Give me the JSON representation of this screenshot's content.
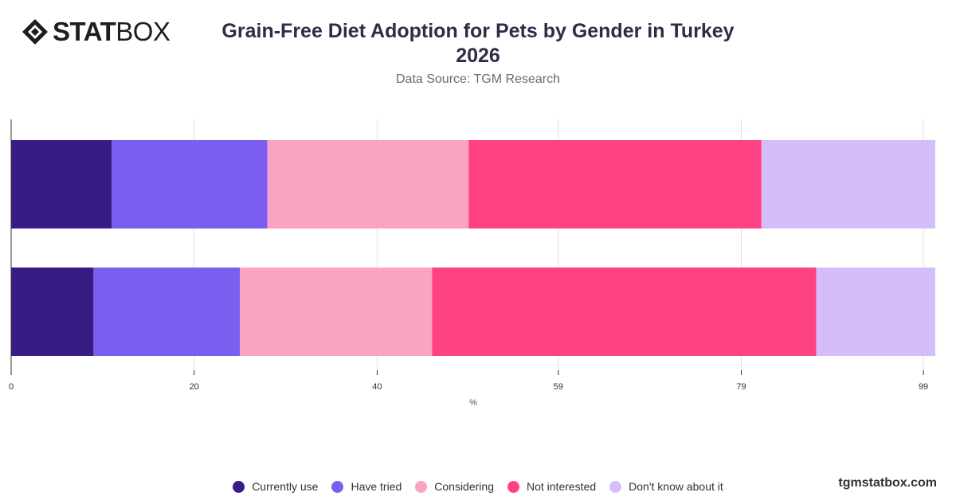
{
  "header": {
    "logo": {
      "strong": "STAT",
      "light": "BOX",
      "icon": "diamond-logo-icon"
    },
    "title_line1": "Grain-Free Diet Adoption for Pets by Gender in Turkey",
    "title_line2": "2026",
    "subtitle": "Data Source: TGM Research"
  },
  "colors": {
    "currently_use": "#371c84",
    "have_tried": "#7b5df0",
    "considering": "#fba3c3",
    "not_interested": "#ff4283",
    "dont_know": "#d5bcfb",
    "grid": "#e2e2e2",
    "axis": "#333333"
  },
  "chart_data": {
    "type": "bar",
    "orientation": "horizontal",
    "stacked": true,
    "categories": [
      "",
      ""
    ],
    "series": [
      {
        "name": "Currently use",
        "values": [
          11,
          9
        ]
      },
      {
        "name": "Have tried",
        "values": [
          17,
          16
        ]
      },
      {
        "name": "Considering",
        "values": [
          22,
          21
        ]
      },
      {
        "name": "Not interested",
        "values": [
          32,
          42
        ]
      },
      {
        "name": "Don't know about it",
        "values": [
          19,
          13
        ]
      }
    ],
    "xlabel": "%",
    "ylabel": "",
    "xlim": [
      0,
      101
    ],
    "x_ticks": [
      "0",
      "20",
      "40",
      "59",
      "79",
      "99"
    ],
    "x_tick_values": [
      0,
      20,
      40,
      59.8,
      79.8,
      99.7
    ],
    "grid": true,
    "legend_position": "bottom"
  },
  "footer": {
    "brand": "tgmstatbox.com"
  }
}
